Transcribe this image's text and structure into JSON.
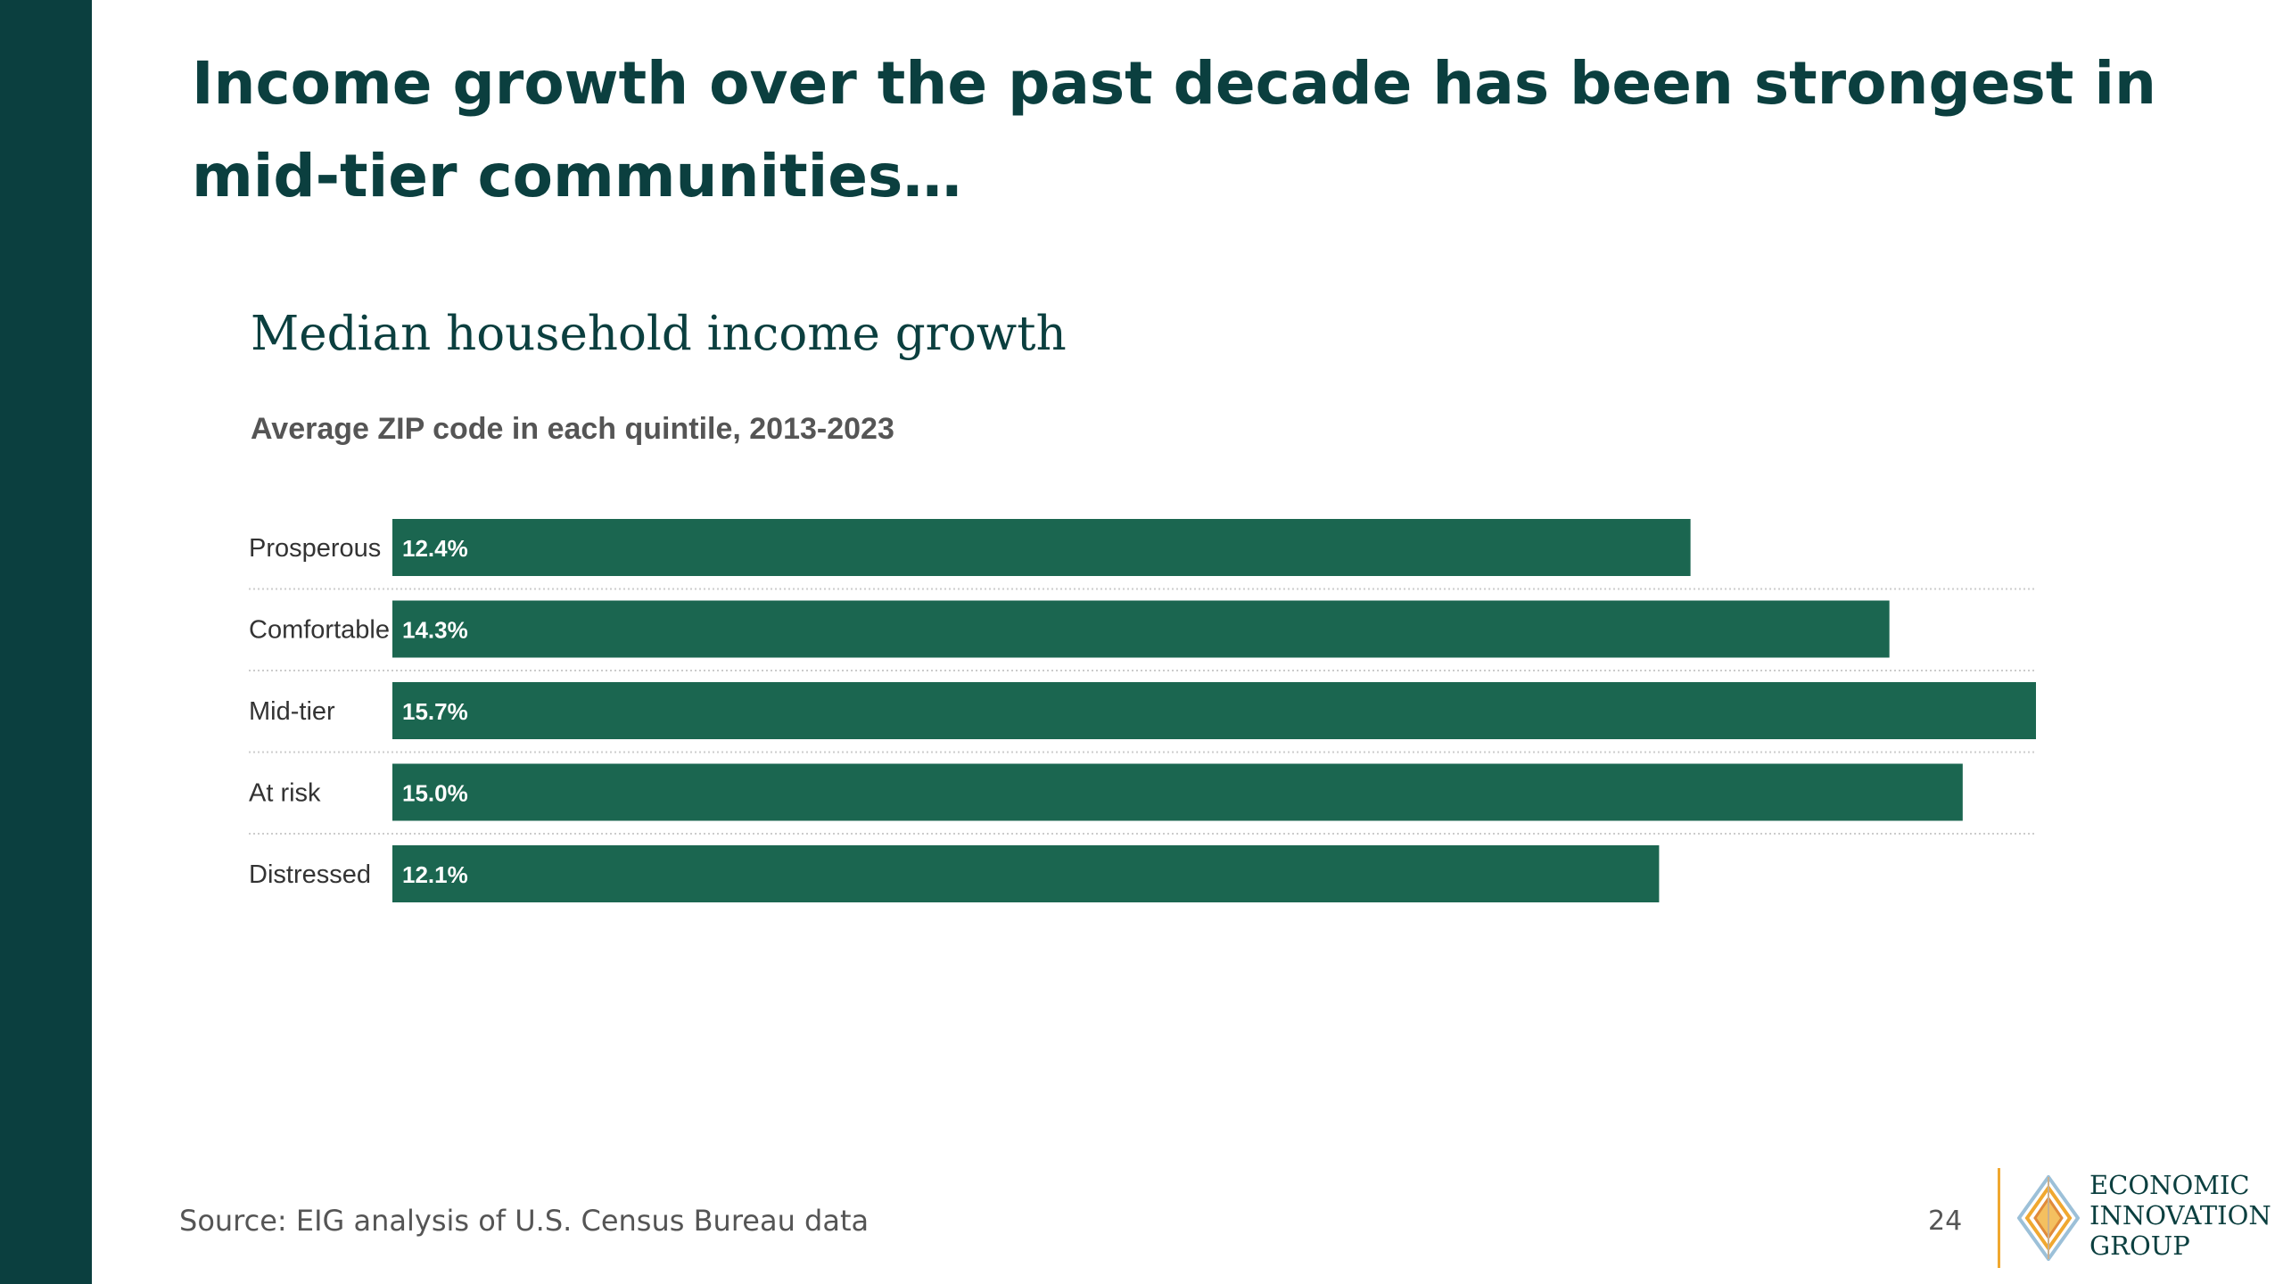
{
  "slide": {
    "title": "Income growth over the past decade has been strongest in mid-tier communities…",
    "source": "Source: EIG analysis of U.S. Census Bureau data",
    "page_number": "24"
  },
  "logo": {
    "lines": [
      "ECONOMIC",
      "INNOVATION",
      "GROUP"
    ],
    "icon": "diamond-logo-icon"
  },
  "colors": {
    "sidebar": "#0b3f3f",
    "bar": "#1b6650",
    "title": "#0b3f3f",
    "accent": "#f0a830"
  },
  "chart_data": {
    "type": "bar",
    "orientation": "horizontal",
    "title": "Median household income growth",
    "subtitle": "Average ZIP code in each quintile, 2013-2023",
    "categories": [
      "Prosperous",
      "Comfortable",
      "Mid-tier",
      "At risk",
      "Distressed"
    ],
    "values": [
      12.4,
      14.3,
      15.7,
      15.0,
      12.1
    ],
    "value_labels": [
      "12.4%",
      "14.3%",
      "15.7%",
      "15.0%",
      "12.1%"
    ],
    "xlim": [
      0,
      15.7
    ],
    "grid": false,
    "legend": "none"
  }
}
